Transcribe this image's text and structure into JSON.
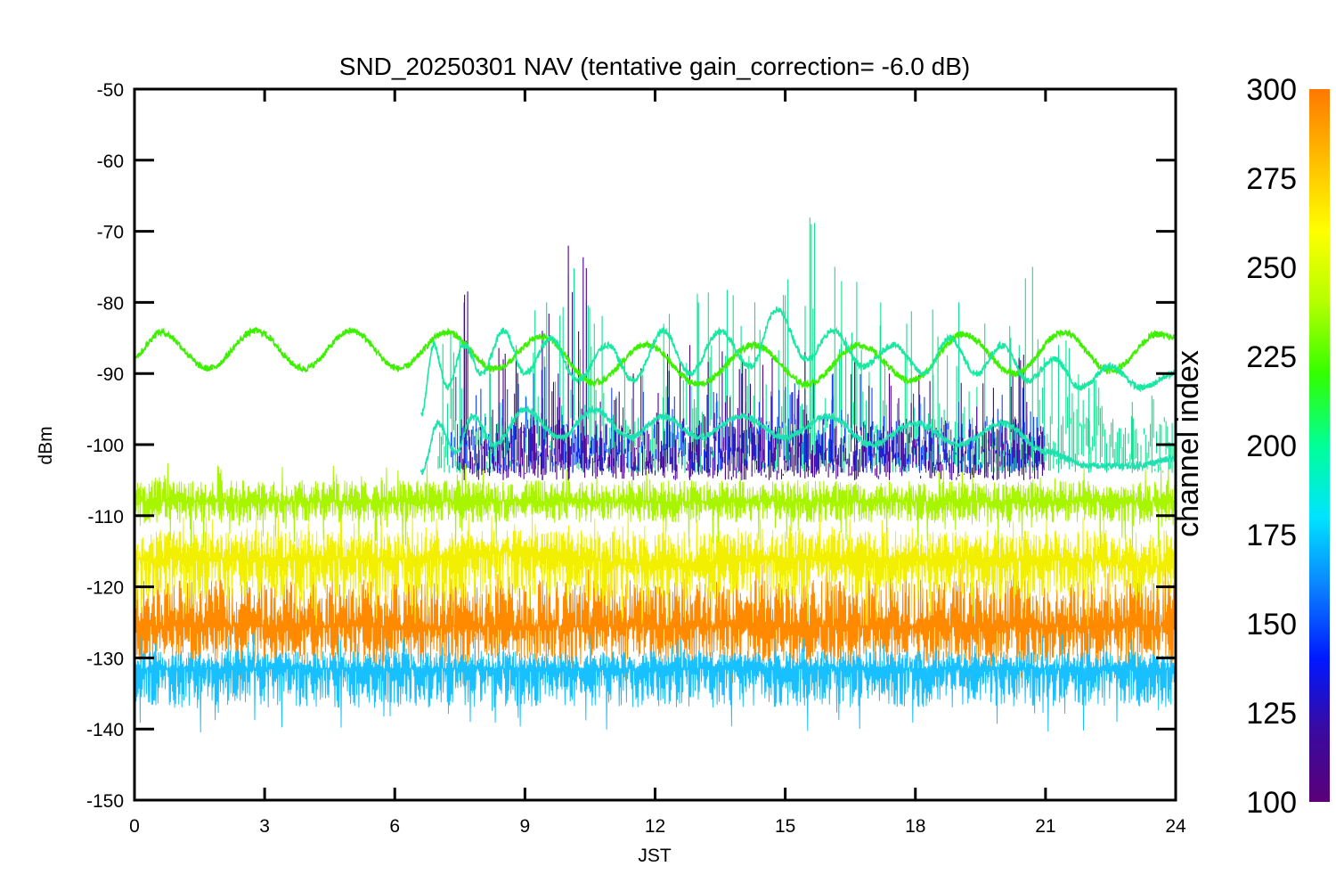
{
  "chart_data": {
    "type": "line",
    "title": "SND_20250301 NAV (tentative gain_correction= -6.0 dB)",
    "xlabel": "JST",
    "ylabel": "dBm",
    "xlim": [
      0,
      24
    ],
    "ylim": [
      -150,
      -50
    ],
    "x_ticks": [
      "0",
      "3",
      "6",
      "9",
      "12",
      "15",
      "18",
      "21",
      "24"
    ],
    "y_ticks": [
      "-50",
      "-60",
      "-70",
      "-80",
      "-90",
      "-100",
      "-110",
      "-120",
      "-130",
      "-140",
      "-150"
    ],
    "grid": false,
    "colorbar": {
      "title": "channel index",
      "range": [
        100,
        300
      ],
      "ticks": [
        "300",
        "275",
        "250",
        "225",
        "200",
        "175",
        "150",
        "125",
        "100"
      ],
      "colormap": [
        "#5a0078",
        "#3a0aa0",
        "#0018ff",
        "#0a80ff",
        "#00e4ff",
        "#00ff96",
        "#32ff00",
        "#b4ff00",
        "#ffff00",
        "#ffbe00",
        "#ff7800"
      ]
    },
    "series": [
      {
        "kind": "band",
        "channel": 290,
        "color": "#ff8a00",
        "x_range": [
          0,
          24
        ],
        "center": [
          [
            0,
            -125.5
          ],
          [
            24,
            -125.5
          ]
        ],
        "min": [
          [
            0,
            -131
          ],
          [
            24,
            -131
          ]
        ],
        "max": [
          [
            0,
            -119
          ],
          [
            24,
            -119
          ]
        ]
      },
      {
        "kind": "band",
        "channel": 270,
        "color": "#f2f000",
        "x_range": [
          0,
          24
        ],
        "center": [
          [
            0,
            -116
          ],
          [
            6,
            -116
          ],
          [
            9,
            -115
          ],
          [
            12,
            -117
          ],
          [
            15,
            -116
          ],
          [
            18,
            -116
          ],
          [
            21,
            -116
          ],
          [
            24,
            -117
          ]
        ],
        "min": [
          [
            0,
            -122
          ],
          [
            24,
            -122
          ]
        ],
        "max": [
          [
            0,
            -112
          ],
          [
            24,
            -112
          ]
        ]
      },
      {
        "kind": "band",
        "channel": 258,
        "color": "#a8f500",
        "x_range": [
          0,
          24
        ],
        "center": [
          [
            0,
            -108
          ],
          [
            24,
            -108
          ]
        ],
        "min": [
          [
            0,
            -111
          ],
          [
            24,
            -111
          ]
        ],
        "max": [
          [
            0,
            -105
          ],
          [
            24,
            -105
          ]
        ]
      },
      {
        "kind": "spikes",
        "channel": 200,
        "color": "#10e090",
        "x_range": [
          7,
          24
        ],
        "base": -104,
        "peaks": [
          [
            7.5,
            -85
          ],
          [
            8.2,
            -90
          ],
          [
            8.8,
            -86
          ],
          [
            9.5,
            -80
          ],
          [
            10.0,
            -76
          ],
          [
            10.6,
            -83
          ],
          [
            11.3,
            -88
          ],
          [
            12.2,
            -83
          ],
          [
            13.0,
            -80
          ],
          [
            13.8,
            -79
          ],
          [
            14.3,
            -80
          ],
          [
            15.0,
            -79
          ],
          [
            15.6,
            -69
          ],
          [
            16.3,
            -77
          ],
          [
            17.2,
            -80
          ],
          [
            17.8,
            -83
          ],
          [
            18.4,
            -81
          ],
          [
            19.0,
            -80
          ],
          [
            19.6,
            -83
          ],
          [
            20.2,
            -85
          ],
          [
            20.7,
            -75
          ],
          [
            21.3,
            -86
          ],
          [
            22.0,
            -92
          ],
          [
            23.0,
            -94
          ]
        ]
      },
      {
        "kind": "spikes",
        "channel": 140,
        "color": "#1040ff",
        "x_range": [
          7.3,
          21
        ],
        "base": -104,
        "peaks": [
          [
            7.6,
            -92
          ],
          [
            8.4,
            -94
          ],
          [
            9.2,
            -90
          ],
          [
            10.1,
            -93
          ],
          [
            11.0,
            -92
          ],
          [
            12.4,
            -95
          ],
          [
            13.2,
            -93
          ],
          [
            14.4,
            -94
          ],
          [
            15.3,
            -93
          ],
          [
            16.1,
            -90
          ],
          [
            17.0,
            -92
          ],
          [
            18.1,
            -93
          ],
          [
            19.0,
            -94
          ],
          [
            20.0,
            -93
          ]
        ]
      },
      {
        "kind": "spikes",
        "channel": 110,
        "color": "#4a0090",
        "x_range": [
          7.5,
          21
        ],
        "base": -105,
        "peaks": [
          [
            7.6,
            -80
          ],
          [
            8.5,
            -88
          ],
          [
            9.4,
            -84
          ],
          [
            10.0,
            -72
          ],
          [
            11.5,
            -90
          ],
          [
            12.8,
            -86
          ],
          [
            14.0,
            -90
          ],
          [
            16.6,
            -88
          ],
          [
            17.4,
            -90
          ],
          [
            19.8,
            -92
          ],
          [
            20.5,
            -89
          ]
        ]
      },
      {
        "kind": "sinusoid",
        "channel": 240,
        "color": "#3cf000",
        "x_range": [
          0,
          24
        ],
        "points": [
          [
            0,
            -87.5
          ],
          [
            0.6,
            -84.2
          ],
          [
            1.7,
            -89.3
          ],
          [
            2.8,
            -84.0
          ],
          [
            3.9,
            -89.3
          ],
          [
            5.0,
            -84.0
          ],
          [
            6.1,
            -89.3
          ],
          [
            7.2,
            -84.2
          ],
          [
            8.3,
            -89.4
          ],
          [
            9.4,
            -84.8
          ],
          [
            10.6,
            -91.3
          ],
          [
            11.8,
            -86.0
          ],
          [
            13.0,
            -91.5
          ],
          [
            14.3,
            -86.0
          ],
          [
            15.5,
            -91.5
          ],
          [
            16.7,
            -86.0
          ],
          [
            17.9,
            -91.0
          ],
          [
            19.1,
            -84.5
          ],
          [
            20.3,
            -90.0
          ],
          [
            21.4,
            -84.2
          ],
          [
            22.5,
            -89.6
          ],
          [
            23.6,
            -84.5
          ],
          [
            24,
            -85.0
          ]
        ]
      },
      {
        "kind": "sinusoid",
        "channel": 205,
        "color": "#18e8a0",
        "x_range": [
          6.6,
          24
        ],
        "points": [
          [
            6.6,
            -96
          ],
          [
            6.9,
            -86
          ],
          [
            7.2,
            -92
          ],
          [
            7.6,
            -86
          ],
          [
            8.0,
            -90
          ],
          [
            8.5,
            -84
          ],
          [
            9.0,
            -90
          ],
          [
            9.6,
            -85
          ],
          [
            10.2,
            -91
          ],
          [
            10.9,
            -86
          ],
          [
            11.5,
            -91
          ],
          [
            12.2,
            -84
          ],
          [
            12.8,
            -90
          ],
          [
            13.5,
            -84
          ],
          [
            14.2,
            -89
          ],
          [
            14.8,
            -81
          ],
          [
            15.5,
            -88
          ],
          [
            16.1,
            -84
          ],
          [
            16.8,
            -89
          ],
          [
            17.5,
            -86
          ],
          [
            18.2,
            -90
          ],
          [
            18.8,
            -85
          ],
          [
            19.4,
            -90
          ],
          [
            20.0,
            -86
          ],
          [
            20.6,
            -91
          ],
          [
            21.2,
            -88
          ],
          [
            21.8,
            -92
          ],
          [
            22.5,
            -89
          ],
          [
            23.2,
            -92
          ],
          [
            24,
            -90
          ]
        ]
      },
      {
        "kind": "sinusoid",
        "channel": 195,
        "color": "#20e0b0",
        "x_range": [
          6.6,
          24
        ],
        "points": [
          [
            6.6,
            -104
          ],
          [
            7.0,
            -97
          ],
          [
            7.4,
            -101
          ],
          [
            7.8,
            -96
          ],
          [
            8.3,
            -100
          ],
          [
            9.0,
            -95
          ],
          [
            9.8,
            -99
          ],
          [
            10.6,
            -95
          ],
          [
            11.4,
            -99
          ],
          [
            12.2,
            -96
          ],
          [
            13.0,
            -99
          ],
          [
            14.0,
            -96
          ],
          [
            15.0,
            -99
          ],
          [
            16.0,
            -96
          ],
          [
            17.0,
            -100
          ],
          [
            18.0,
            -97
          ],
          [
            19.0,
            -100
          ],
          [
            20.0,
            -97
          ],
          [
            21.0,
            -101
          ],
          [
            22.0,
            -103
          ],
          [
            23.0,
            -103
          ],
          [
            24,
            -102
          ]
        ]
      },
      {
        "kind": "band",
        "channel": 150,
        "color": "#18c0ff",
        "x_range": [
          0,
          24
        ],
        "center": [
          [
            0,
            -131.5
          ],
          [
            24,
            -131.5
          ]
        ],
        "min": [
          [
            0,
            -137
          ],
          [
            24,
            -137
          ]
        ],
        "max": [
          [
            0,
            -129
          ],
          [
            24,
            -129
          ]
        ]
      }
    ]
  }
}
